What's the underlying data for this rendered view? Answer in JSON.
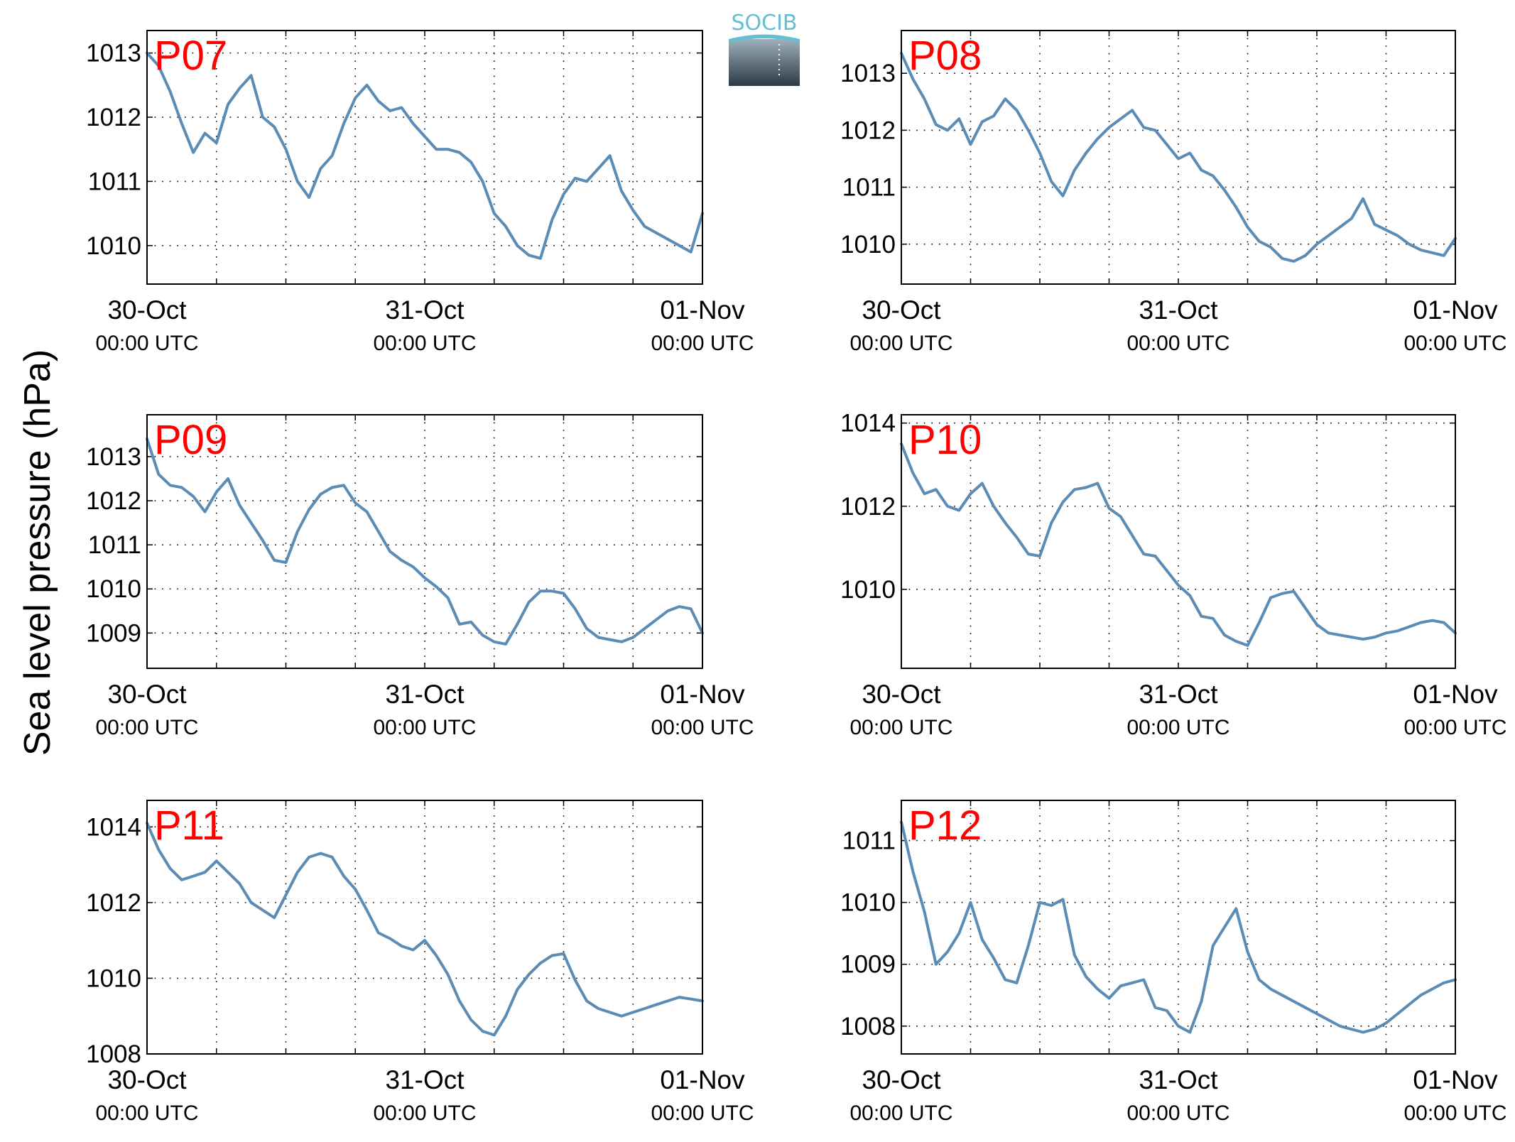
{
  "figure": {
    "ylabel": "Sea level pressure (hPa)",
    "logo_text": "SOCIB",
    "colors": {
      "line": "#5b8cb5",
      "panel_label": "#ff0000",
      "logo_text": "#66bfd1",
      "logo_top": "#9fb0bd",
      "logo_bottom": "#2a3a46"
    }
  },
  "chart_data": [
    {
      "type": "line",
      "name": "P07",
      "x_ticks": [
        {
          "date": "30-Oct",
          "time": "00:00 UTC"
        },
        {
          "date": "31-Oct",
          "time": "00:00 UTC"
        },
        {
          "date": "01-Nov",
          "time": "00:00 UTC"
        }
      ],
      "x_range_hours": [
        0,
        48
      ],
      "ylim": [
        1009.4,
        1013.35
      ],
      "yticks": [
        1010,
        1011,
        1012,
        1013
      ],
      "grid": "dotted",
      "x": [
        0,
        1,
        2,
        3,
        4,
        5,
        6,
        7,
        8,
        9,
        10,
        11,
        12,
        13,
        14,
        15,
        16,
        17,
        18,
        19,
        20,
        21,
        22,
        23,
        24,
        25,
        26,
        27,
        28,
        29,
        30,
        31,
        32,
        33,
        34,
        35,
        36,
        37,
        38,
        39,
        40,
        41,
        42,
        43,
        44,
        45,
        46,
        47,
        48
      ],
      "values": [
        1013.0,
        1012.8,
        1012.4,
        1011.9,
        1011.45,
        1011.75,
        1011.6,
        1012.2,
        1012.45,
        1012.65,
        1012.0,
        1011.85,
        1011.5,
        1011.0,
        1010.75,
        1011.2,
        1011.4,
        1011.9,
        1012.3,
        1012.5,
        1012.25,
        1012.1,
        1012.15,
        1011.9,
        1011.7,
        1011.5,
        1011.5,
        1011.45,
        1011.3,
        1011.0,
        1010.5,
        1010.3,
        1010.0,
        1009.85,
        1009.8,
        1010.4,
        1010.8,
        1011.05,
        1011.0,
        1011.2,
        1011.4,
        1010.85,
        1010.55,
        1010.3,
        1010.2,
        1010.1,
        1010.0,
        1009.9,
        1010.5
      ]
    },
    {
      "type": "line",
      "name": "P08",
      "x_ticks": [
        {
          "date": "30-Oct",
          "time": "00:00 UTC"
        },
        {
          "date": "31-Oct",
          "time": "00:00 UTC"
        },
        {
          "date": "01-Nov",
          "time": "00:00 UTC"
        }
      ],
      "x_range_hours": [
        0,
        48
      ],
      "ylim": [
        1009.3,
        1013.75
      ],
      "yticks": [
        1010,
        1011,
        1012,
        1013
      ],
      "grid": "dotted",
      "x": [
        0,
        1,
        2,
        3,
        4,
        5,
        6,
        7,
        8,
        9,
        10,
        11,
        12,
        13,
        14,
        15,
        16,
        17,
        18,
        19,
        20,
        21,
        22,
        23,
        24,
        25,
        26,
        27,
        28,
        29,
        30,
        31,
        32,
        33,
        34,
        35,
        36,
        37,
        38,
        39,
        40,
        41,
        42,
        43,
        44,
        45,
        46,
        47,
        48
      ],
      "values": [
        1013.35,
        1012.9,
        1012.55,
        1012.1,
        1012.0,
        1012.2,
        1011.75,
        1012.15,
        1012.25,
        1012.55,
        1012.35,
        1012.0,
        1011.6,
        1011.1,
        1010.85,
        1011.3,
        1011.6,
        1011.85,
        1012.05,
        1012.2,
        1012.35,
        1012.05,
        1012.0,
        1011.75,
        1011.5,
        1011.6,
        1011.3,
        1011.2,
        1010.95,
        1010.65,
        1010.3,
        1010.05,
        1009.95,
        1009.75,
        1009.7,
        1009.8,
        1010.0,
        1010.15,
        1010.3,
        1010.45,
        1010.8,
        1010.35,
        1010.25,
        1010.15,
        1010.0,
        1009.9,
        1009.85,
        1009.8,
        1010.1
      ]
    },
    {
      "type": "line",
      "name": "P09",
      "x_ticks": [
        {
          "date": "30-Oct",
          "time": "00:00 UTC"
        },
        {
          "date": "31-Oct",
          "time": "00:00 UTC"
        },
        {
          "date": "01-Nov",
          "time": "00:00 UTC"
        }
      ],
      "x_range_hours": [
        0,
        48
      ],
      "ylim": [
        1008.2,
        1013.95
      ],
      "yticks": [
        1009,
        1010,
        1011,
        1012,
        1013
      ],
      "grid": "dotted",
      "x": [
        0,
        1,
        2,
        3,
        4,
        5,
        6,
        7,
        8,
        9,
        10,
        11,
        12,
        13,
        14,
        15,
        16,
        17,
        18,
        19,
        20,
        21,
        22,
        23,
        24,
        25,
        26,
        27,
        28,
        29,
        30,
        31,
        32,
        33,
        34,
        35,
        36,
        37,
        38,
        39,
        40,
        41,
        42,
        43,
        44,
        45,
        46,
        47,
        48
      ],
      "values": [
        1013.4,
        1012.6,
        1012.35,
        1012.3,
        1012.1,
        1011.75,
        1012.2,
        1012.5,
        1011.9,
        1011.5,
        1011.1,
        1010.65,
        1010.6,
        1011.3,
        1011.8,
        1012.15,
        1012.3,
        1012.35,
        1011.95,
        1011.75,
        1011.3,
        1010.85,
        1010.65,
        1010.5,
        1010.25,
        1010.05,
        1009.8,
        1009.2,
        1009.25,
        1008.95,
        1008.8,
        1008.75,
        1009.2,
        1009.7,
        1009.95,
        1009.95,
        1009.9,
        1009.55,
        1009.1,
        1008.9,
        1008.85,
        1008.8,
        1008.9,
        1009.1,
        1009.3,
        1009.5,
        1009.6,
        1009.55,
        1009.0
      ]
    },
    {
      "type": "line",
      "name": "P10",
      "x_ticks": [
        {
          "date": "30-Oct",
          "time": "00:00 UTC"
        },
        {
          "date": "31-Oct",
          "time": "00:00 UTC"
        },
        {
          "date": "01-Nov",
          "time": "00:00 UTC"
        }
      ],
      "x_range_hours": [
        0,
        48
      ],
      "ylim": [
        1008.1,
        1014.2
      ],
      "yticks": [
        1010,
        1012,
        1014
      ],
      "grid": "dotted",
      "x": [
        0,
        1,
        2,
        3,
        4,
        5,
        6,
        7,
        8,
        9,
        10,
        11,
        12,
        13,
        14,
        15,
        16,
        17,
        18,
        19,
        20,
        21,
        22,
        23,
        24,
        25,
        26,
        27,
        28,
        29,
        30,
        31,
        32,
        33,
        34,
        35,
        36,
        37,
        38,
        39,
        40,
        41,
        42,
        43,
        44,
        45,
        46,
        47,
        48
      ],
      "values": [
        1013.5,
        1012.8,
        1012.3,
        1012.4,
        1012.0,
        1011.9,
        1012.3,
        1012.55,
        1012.0,
        1011.6,
        1011.25,
        1010.85,
        1010.8,
        1011.6,
        1012.1,
        1012.4,
        1012.45,
        1012.55,
        1011.95,
        1011.75,
        1011.3,
        1010.85,
        1010.8,
        1010.45,
        1010.1,
        1009.85,
        1009.35,
        1009.3,
        1008.9,
        1008.75,
        1008.65,
        1009.2,
        1009.8,
        1009.9,
        1009.95,
        1009.55,
        1009.15,
        1008.95,
        1008.9,
        1008.85,
        1008.8,
        1008.85,
        1008.95,
        1009.0,
        1009.1,
        1009.2,
        1009.25,
        1009.2,
        1008.95
      ]
    },
    {
      "type": "line",
      "name": "P11",
      "x_ticks": [
        {
          "date": "30-Oct",
          "time": "00:00 UTC"
        },
        {
          "date": "31-Oct",
          "time": "00:00 UTC"
        },
        {
          "date": "01-Nov",
          "time": "00:00 UTC"
        }
      ],
      "x_range_hours": [
        0,
        48
      ],
      "ylim": [
        1008.0,
        1014.7
      ],
      "yticks": [
        1008,
        1010,
        1012,
        1014
      ],
      "grid": "dotted",
      "x": [
        0,
        1,
        2,
        3,
        4,
        5,
        6,
        7,
        8,
        9,
        10,
        11,
        12,
        13,
        14,
        15,
        16,
        17,
        18,
        19,
        20,
        21,
        22,
        23,
        24,
        25,
        26,
        27,
        28,
        29,
        30,
        31,
        32,
        33,
        34,
        35,
        36,
        37,
        38,
        39,
        40,
        41,
        42,
        43,
        44,
        45,
        46,
        47,
        48
      ],
      "values": [
        1014.1,
        1013.4,
        1012.9,
        1012.6,
        1012.7,
        1012.8,
        1013.1,
        1012.8,
        1012.5,
        1012.0,
        1011.8,
        1011.6,
        1012.2,
        1012.8,
        1013.2,
        1013.3,
        1013.2,
        1012.7,
        1012.35,
        1011.8,
        1011.2,
        1011.05,
        1010.85,
        1010.75,
        1011.0,
        1010.6,
        1010.1,
        1009.4,
        1008.9,
        1008.6,
        1008.5,
        1009.0,
        1009.7,
        1010.1,
        1010.4,
        1010.6,
        1010.65,
        1009.95,
        1009.4,
        1009.2,
        1009.1,
        1009.0,
        1009.1,
        1009.2,
        1009.3,
        1009.4,
        1009.5,
        1009.45,
        1009.4
      ]
    },
    {
      "type": "line",
      "name": "P12",
      "x_ticks": [
        {
          "date": "30-Oct",
          "time": "00:00 UTC"
        },
        {
          "date": "31-Oct",
          "time": "00:00 UTC"
        },
        {
          "date": "01-Nov",
          "time": "00:00 UTC"
        }
      ],
      "x_range_hours": [
        0,
        48
      ],
      "ylim": [
        1007.55,
        1011.65
      ],
      "yticks": [
        1008,
        1009,
        1010,
        1011
      ],
      "grid": "dotted",
      "x": [
        0,
        1,
        2,
        3,
        4,
        5,
        6,
        7,
        8,
        9,
        10,
        11,
        12,
        13,
        14,
        15,
        16,
        17,
        18,
        19,
        20,
        21,
        22,
        23,
        24,
        25,
        26,
        27,
        28,
        29,
        30,
        31,
        32,
        33,
        34,
        35,
        36,
        37,
        38,
        39,
        40,
        41,
        42,
        43,
        44,
        45,
        46,
        47,
        48
      ],
      "values": [
        1011.3,
        1010.5,
        1009.85,
        1009.0,
        1009.2,
        1009.5,
        1010.0,
        1009.4,
        1009.1,
        1008.75,
        1008.7,
        1009.3,
        1010.0,
        1009.95,
        1010.05,
        1009.15,
        1008.8,
        1008.6,
        1008.45,
        1008.65,
        1008.7,
        1008.75,
        1008.3,
        1008.25,
        1008.0,
        1007.9,
        1008.4,
        1009.3,
        1009.6,
        1009.9,
        1009.2,
        1008.75,
        1008.6,
        1008.5,
        1008.4,
        1008.3,
        1008.2,
        1008.1,
        1008.0,
        1007.95,
        1007.9,
        1007.95,
        1008.05,
        1008.2,
        1008.35,
        1008.5,
        1008.6,
        1008.7,
        1008.75
      ]
    }
  ]
}
